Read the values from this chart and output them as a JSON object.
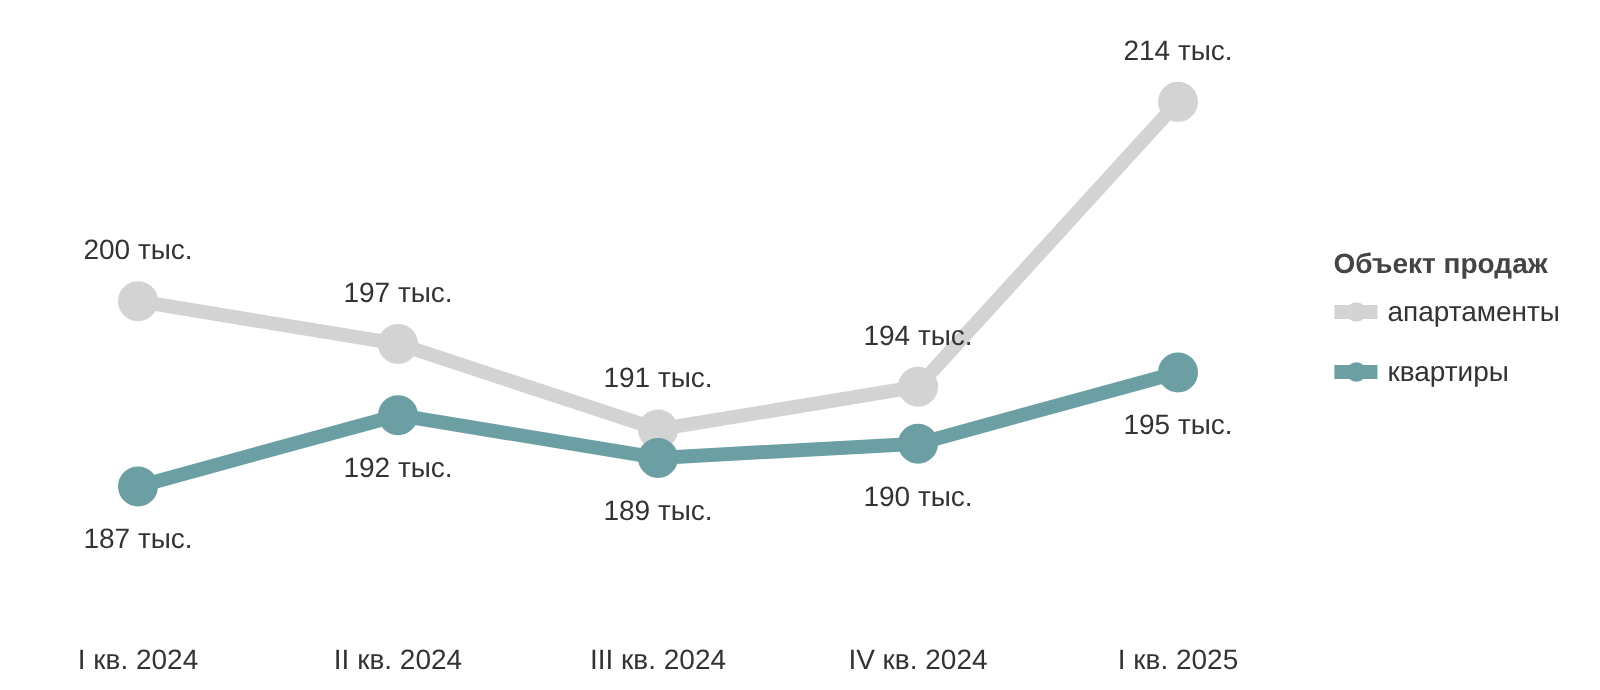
{
  "chart_data": {
    "type": "line",
    "categories": [
      "I кв. 2024",
      "II кв. 2024",
      "III кв. 2024",
      "IV кв. 2024",
      "I кв. 2025"
    ],
    "legend_title": "Объект продаж",
    "legend": "right",
    "marker": "circle",
    "line_style": "solid",
    "grid": false,
    "tick_labels": "x",
    "series": [
      {
        "name": "апартаменты",
        "color": "#d3d3d3",
        "values": [
          200,
          197,
          191,
          194,
          214
        ],
        "value_labels": [
          "200 тыс.",
          "197 тыс.",
          "191 тыс.",
          "194 тыс.",
          "214 тыс."
        ]
      },
      {
        "name": "квартиры",
        "color": "#6c9fa3",
        "values": [
          187,
          192,
          189,
          190,
          195
        ],
        "value_labels": [
          "187 тыс.",
          "192 тыс.",
          "189 тыс.",
          "190 тыс.",
          "195 тыс."
        ]
      }
    ]
  }
}
